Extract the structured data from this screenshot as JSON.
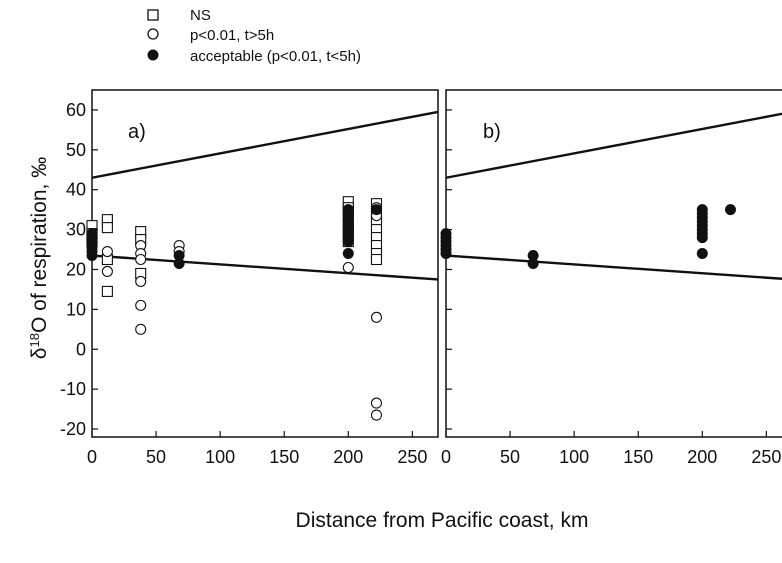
{
  "chart_data": [
    {
      "type": "scatter",
      "panel_label": "a)",
      "xlabel": "Distance from Pacific coast, km",
      "ylabel_parts": [
        "δ",
        "18",
        "O of respiration, ‰"
      ],
      "xlim": [
        0,
        270
      ],
      "ylim": [
        -22,
        65
      ],
      "xticks": [
        0,
        50,
        100,
        150,
        200,
        250
      ],
      "yticks": [
        -20,
        -10,
        0,
        10,
        20,
        30,
        40,
        50,
        60
      ],
      "grid": false,
      "legend_placement": "top-left, above plot",
      "series": [
        {
          "name": "NS",
          "marker": "open-square",
          "points": [
            [
              0,
              31
            ],
            [
              0,
              29
            ],
            [
              0,
              28
            ],
            [
              0,
              27
            ],
            [
              12,
              32.5
            ],
            [
              12,
              30.5
            ],
            [
              12,
              22.5
            ],
            [
              12,
              14.5
            ],
            [
              38,
              29.5
            ],
            [
              38,
              27.5
            ],
            [
              38,
              19
            ],
            [
              200,
              37
            ],
            [
              200,
              35.5
            ],
            [
              200,
              34.5
            ],
            [
              200,
              33
            ],
            [
              200,
              31.5
            ],
            [
              200,
              30
            ],
            [
              200,
              28.5
            ],
            [
              200,
              27
            ],
            [
              222,
              36.5
            ],
            [
              222,
              34
            ],
            [
              222,
              32
            ],
            [
              222,
              30
            ],
            [
              222,
              28
            ],
            [
              222,
              26
            ],
            [
              222,
              24
            ],
            [
              222,
              22.5
            ]
          ]
        },
        {
          "name": "p<0.01, t>5h",
          "marker": "open-circle",
          "points": [
            [
              12,
              24.5
            ],
            [
              12,
              19.5
            ],
            [
              38,
              26
            ],
            [
              38,
              24
            ],
            [
              38,
              22.5
            ],
            [
              38,
              17
            ],
            [
              38,
              11
            ],
            [
              38,
              5
            ],
            [
              68,
              26
            ],
            [
              68,
              24.5
            ],
            [
              200,
              20.5
            ],
            [
              222,
              35.5
            ],
            [
              222,
              33.5
            ],
            [
              222,
              8
            ],
            [
              222,
              -13.5
            ],
            [
              222,
              -16.5
            ]
          ]
        },
        {
          "name": "acceptable (p<0.01, t<5h)",
          "marker": "filled-circle",
          "points": [
            [
              0,
              29
            ],
            [
              0,
              27.5
            ],
            [
              0,
              26.5
            ],
            [
              0,
              25.5
            ],
            [
              0,
              24.5
            ],
            [
              0,
              23.5
            ],
            [
              68,
              23.5
            ],
            [
              68,
              21.5
            ],
            [
              200,
              35
            ],
            [
              200,
              34
            ],
            [
              200,
              33
            ],
            [
              200,
              32
            ],
            [
              200,
              31
            ],
            [
              200,
              30
            ],
            [
              200,
              29
            ],
            [
              200,
              28
            ],
            [
              200,
              27
            ],
            [
              200,
              24
            ],
            [
              222,
              35
            ]
          ]
        }
      ],
      "lines": [
        {
          "x": [
            0,
            270
          ],
          "y": [
            43,
            59.5
          ]
        },
        {
          "x": [
            0,
            270
          ],
          "y": [
            23.5,
            17.5
          ]
        }
      ]
    },
    {
      "type": "scatter",
      "panel_label": "b)",
      "xlim": [
        0,
        270
      ],
      "ylim": [
        -22,
        65
      ],
      "xticks": [
        0,
        50,
        100,
        150,
        200,
        250
      ],
      "yticks": [
        -20,
        -10,
        0,
        10,
        20,
        30,
        40,
        50,
        60
      ],
      "grid": false,
      "series": [
        {
          "name": "acceptable (p<0.01, t<5h)",
          "marker": "filled-circle",
          "points": [
            [
              0,
              29
            ],
            [
              0,
              28
            ],
            [
              0,
              27
            ],
            [
              0,
              26
            ],
            [
              0,
              25
            ],
            [
              0,
              24
            ],
            [
              68,
              23.5
            ],
            [
              68,
              21.5
            ],
            [
              200,
              35
            ],
            [
              200,
              34
            ],
            [
              200,
              33
            ],
            [
              200,
              32
            ],
            [
              200,
              31
            ],
            [
              200,
              30
            ],
            [
              200,
              29
            ],
            [
              200,
              28
            ],
            [
              200,
              24
            ],
            [
              222,
              35
            ]
          ]
        }
      ],
      "lines": [
        {
          "x": [
            0,
            270
          ],
          "y": [
            43,
            59.5
          ]
        },
        {
          "x": [
            0,
            270
          ],
          "y": [
            23.5,
            17.5
          ]
        }
      ]
    }
  ],
  "legend": {
    "items": [
      {
        "label": "NS",
        "marker": "open-square"
      },
      {
        "label": "p<0.01, t>5h",
        "marker": "open-circle"
      },
      {
        "label": "acceptable (p<0.01, t<5h)",
        "marker": "filled-circle"
      }
    ]
  },
  "colors": {
    "ink": "#111111",
    "background": "#ffffff"
  }
}
